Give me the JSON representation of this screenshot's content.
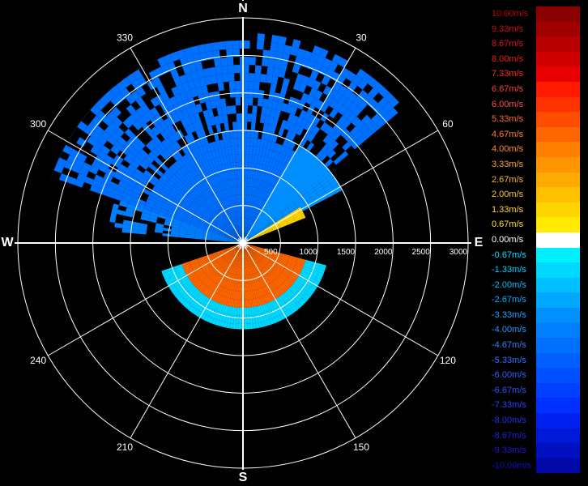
{
  "chart_data": {
    "type": "polar-doppler-radar",
    "title": "",
    "compass": {
      "north": "N",
      "east": "E",
      "south": "S",
      "west": "W"
    },
    "azimuth_labels": [
      "30",
      "60",
      "120",
      "150",
      "210",
      "240",
      "300",
      "330"
    ],
    "azimuth_label_angles_deg": [
      30,
      60,
      120,
      150,
      210,
      240,
      300,
      330
    ],
    "range_tick_labels": [
      "500",
      "1000",
      "1500",
      "2000",
      "2500",
      "3000"
    ],
    "range_max": 3000,
    "velocity_scale": {
      "unit": "m/s",
      "labels": [
        "10.00m/s",
        "9.33m/s",
        "8.67m/s",
        "8.00m/s",
        "7.33m/s",
        "6.67m/s",
        "6.00m/s",
        "5.33m/s",
        "4.67m/s",
        "4.00m/s",
        "3.33m/s",
        "2.67m/s",
        "2.00m/s",
        "1.33m/s",
        "0.67m/s",
        "0.00m/s",
        "-0.67m/s",
        "-1.33m/s",
        "-2.00m/s",
        "-2.67m/s",
        "-3.33m/s",
        "-4.00m/s",
        "-4.67m/s",
        "-5.33m/s",
        "-6.00m/s",
        "-6.67m/s",
        "-7.33m/s",
        "-8.00m/s",
        "-8.67m/s",
        "-9.33m/s",
        "-10.00m/s"
      ],
      "swatch_colors": [
        "#8a0000",
        "#a00000",
        "#b80000",
        "#d00000",
        "#e80000",
        "#ff1a00",
        "#ff3300",
        "#ff4d00",
        "#ff6600",
        "#ff8000",
        "#ff9500",
        "#ffaa00",
        "#ffc000",
        "#ffd500",
        "#ffea00",
        "#ffffff",
        "#00f0ff",
        "#00d8ff",
        "#00c0ff",
        "#00a8ff",
        "#0090ff",
        "#0080ff",
        "#0070ff",
        "#0060ff",
        "#0050ff",
        "#0040ff",
        "#0030ff",
        "#0020f0",
        "#0018d8",
        "#0010c0",
        "#0008a8"
      ],
      "label_colors": [
        "#c00000",
        "#d01010",
        "#e01515",
        "#f01a1a",
        "#ff2a2a",
        "#ff3a3a",
        "#ff4a4a",
        "#ff6a2a",
        "#ff802a",
        "#ff902a",
        "#ffa52a",
        "#ffb52a",
        "#ffc52a",
        "#ffd52a",
        "#ffe52a",
        "#ffffff",
        "#00e0ff",
        "#00d0ff",
        "#00c0ff",
        "#00b0ff",
        "#20a0ff",
        "#3090ff",
        "#3080ff",
        "#3070ff",
        "#3060ff",
        "#3050ff",
        "#3040ff",
        "#2030f0",
        "#2020e0",
        "#2010d0",
        "#1010c0"
      ]
    },
    "sectors": [
      {
        "from_deg": 289,
        "to_deg": 360,
        "outer_range": 2700,
        "velocity": -4.5,
        "sparse": true
      },
      {
        "from_deg": 0,
        "to_deg": 50,
        "outer_range": 2800,
        "velocity": -4.5,
        "sparse": true
      },
      {
        "from_deg": 275,
        "to_deg": 289,
        "outer_range": 1800,
        "velocity": -4.0,
        "sparse": true
      },
      {
        "from_deg": 30,
        "to_deg": 62,
        "outer_range": 1500,
        "velocity": -3.0,
        "sparse": false
      },
      {
        "from_deg": 58,
        "to_deg": 67,
        "outer_range": 900,
        "velocity": 1.3,
        "sparse": false
      },
      {
        "from_deg": 105,
        "to_deg": 250,
        "outer_range": 1150,
        "velocity": 5.0,
        "sparse": false,
        "rim_velocity": -1.0
      }
    ]
  }
}
